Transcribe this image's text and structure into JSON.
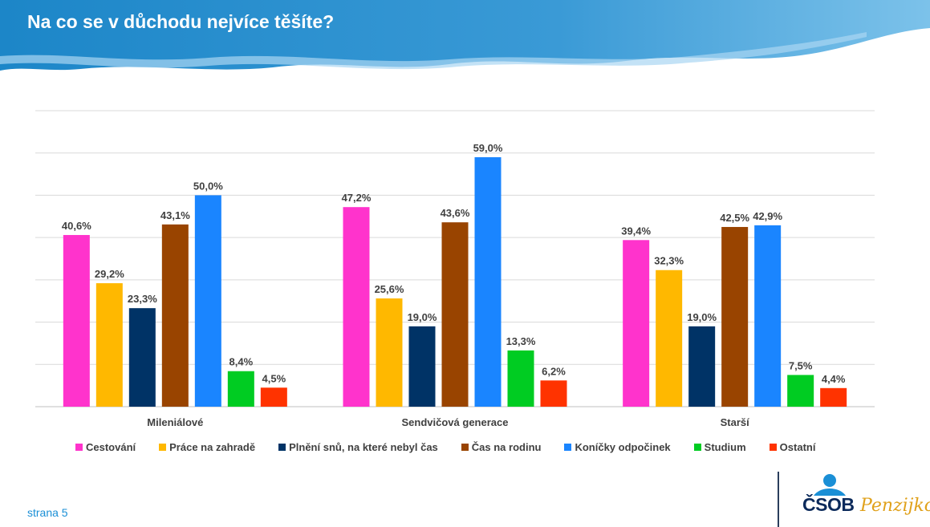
{
  "header": {
    "title": "Na co se v důchodu nejvíce těšíte?"
  },
  "chart_data": {
    "type": "bar",
    "title": "",
    "xlabel": "",
    "ylabel": "",
    "ylim": [
      0,
      70
    ],
    "grid": true,
    "legend_placement": "bottom",
    "categories": [
      "Mileniálové",
      "Sendvičová generace",
      "Starší"
    ],
    "series": [
      {
        "name": "Cestování",
        "color": "#ff33cc",
        "values": [
          40.6,
          47.2,
          39.4
        ],
        "labels": [
          "40,6%",
          "47,2%",
          "39,4%"
        ]
      },
      {
        "name": "Práce na zahradě",
        "color": "#ffb800",
        "values": [
          29.2,
          25.6,
          32.3
        ],
        "labels": [
          "29,2%",
          "25,6%",
          "32,3%"
        ]
      },
      {
        "name": "Plnění snů, na které nebyl čas",
        "color": "#003366",
        "values": [
          23.3,
          19.0,
          19.0
        ],
        "labels": [
          "23,3%",
          "19,0%",
          "19,0%"
        ]
      },
      {
        "name": "Čas na rodinu",
        "color": "#994400",
        "values": [
          43.1,
          43.6,
          42.5
        ],
        "labels": [
          "43,1%",
          "43,6%",
          "42,5%"
        ]
      },
      {
        "name": "Koníčky odpočinek",
        "color": "#1a85ff",
        "values": [
          50.0,
          59.0,
          42.9
        ],
        "labels": [
          "50,0%",
          "59,0%",
          "42,9%"
        ]
      },
      {
        "name": "Studium",
        "color": "#00cc22",
        "values": [
          8.4,
          13.3,
          7.5
        ],
        "labels": [
          "8,4%",
          "13,3%",
          "7,5%"
        ]
      },
      {
        "name": "Ostatní",
        "color": "#ff3300",
        "values": [
          4.5,
          6.2,
          4.4
        ],
        "labels": [
          "4,5%",
          "6,2%",
          "4,4%"
        ]
      }
    ]
  },
  "footer": {
    "page": "strana 5",
    "logo_text": "ČSOB",
    "logo_sub": "Penzijko",
    "logo_icon": "csob-logo-icon"
  }
}
